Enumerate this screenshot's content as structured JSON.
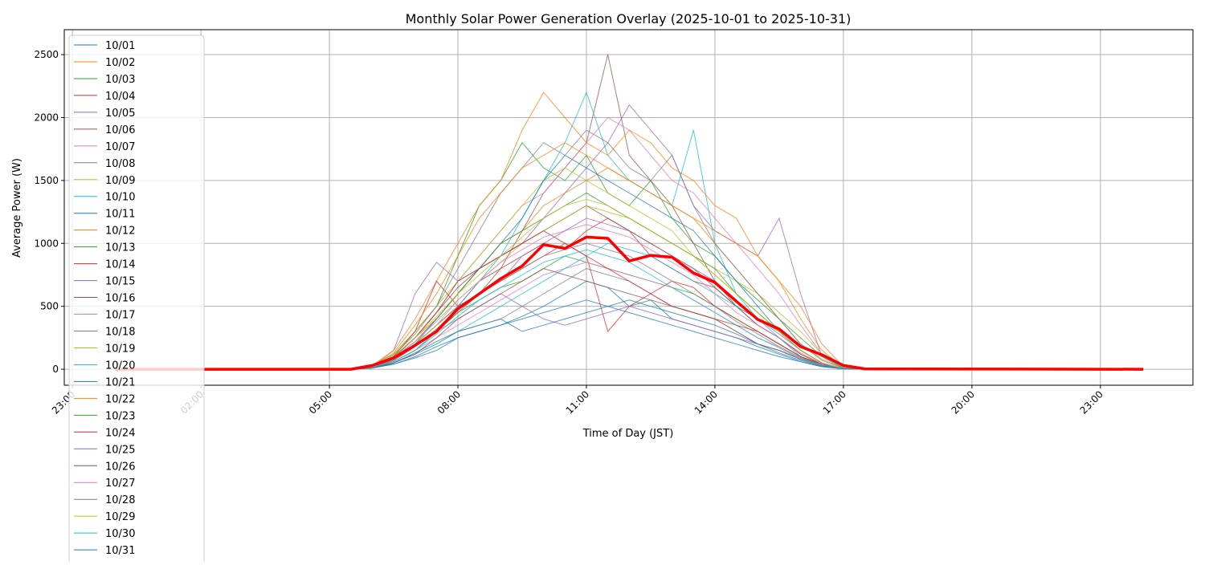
{
  "chart_data": {
    "type": "line",
    "title": "Monthly Solar Power Generation Overlay (2025-10-01 to 2025-10-31)",
    "xlabel": "Time of Day (JST)",
    "ylabel": "Average Power (W)",
    "xlim_hours": [
      -1.19,
      25.16
    ],
    "ylim": [
      -127,
      2698
    ],
    "grid": true,
    "legend_position": "upper-left",
    "x_ticks": [
      {
        "hour": -1,
        "label": "23:00"
      },
      {
        "hour": 2,
        "label": "02:00"
      },
      {
        "hour": 5,
        "label": "05:00"
      },
      {
        "hour": 8,
        "label": "08:00"
      },
      {
        "hour": 11,
        "label": "11:00"
      },
      {
        "hour": 14,
        "label": "14:00"
      },
      {
        "hour": 17,
        "label": "17:00"
      },
      {
        "hour": 20,
        "label": "20:00"
      },
      {
        "hour": 23,
        "label": "23:00"
      }
    ],
    "y_ticks": [
      {
        "value": 0,
        "label": "0"
      },
      {
        "value": 500,
        "label": "500"
      },
      {
        "value": 1000,
        "label": "1000"
      },
      {
        "value": 1500,
        "label": "1500"
      },
      {
        "value": 2000,
        "label": "2000"
      },
      {
        "value": 2500,
        "label": "2500"
      }
    ],
    "sample_start_hour": 5.5,
    "sample_step_hours": 0.5,
    "day_range_hours": [
      0,
      24
    ],
    "colors": [
      "#1f77b4",
      "#ff7f0e",
      "#2ca02c",
      "#d62728",
      "#9467bd",
      "#8c564b",
      "#e377c2",
      "#7f7f7f",
      "#bcbd22",
      "#17becf"
    ],
    "mean_color": "#ff0000",
    "series": [
      {
        "name": "10/01",
        "values": [
          0,
          10,
          40,
          90,
          150,
          250,
          300,
          350,
          420,
          500,
          600,
          700,
          650,
          500,
          550,
          400,
          350,
          300,
          250,
          180,
          120,
          60,
          20,
          5,
          0
        ]
      },
      {
        "name": "10/02",
        "values": [
          0,
          20,
          100,
          250,
          400,
          600,
          800,
          1000,
          1100,
          1300,
          1400,
          1500,
          1600,
          1500,
          1400,
          1300,
          1200,
          1000,
          800,
          600,
          400,
          200,
          80,
          10,
          0
        ]
      },
      {
        "name": "10/03",
        "values": [
          0,
          30,
          120,
          300,
          500,
          900,
          1300,
          1500,
          1800,
          1600,
          1500,
          1700,
          1400,
          1300,
          1500,
          1200,
          1000,
          900,
          700,
          550,
          400,
          250,
          100,
          10,
          0
        ]
      },
      {
        "name": "10/04",
        "values": [
          0,
          15,
          80,
          200,
          350,
          500,
          700,
          800,
          900,
          1000,
          950,
          1100,
          1200,
          1100,
          900,
          800,
          700,
          650,
          500,
          400,
          300,
          150,
          50,
          5,
          0
        ]
      },
      {
        "name": "10/05",
        "values": [
          0,
          20,
          150,
          600,
          850,
          700,
          800,
          900,
          1000,
          1200,
          1400,
          1600,
          1800,
          2100,
          1900,
          1700,
          1300,
          1100,
          1000,
          900,
          1200,
          600,
          100,
          10,
          0
        ]
      },
      {
        "name": "10/06",
        "values": [
          0,
          10,
          60,
          150,
          300,
          450,
          600,
          800,
          1100,
          1400,
          1600,
          1800,
          2500,
          1700,
          1500,
          1300,
          1000,
          700,
          500,
          350,
          250,
          120,
          40,
          5,
          0
        ]
      },
      {
        "name": "10/07",
        "values": [
          0,
          25,
          100,
          250,
          450,
          700,
          900,
          1100,
          1300,
          1400,
          1600,
          1800,
          2000,
          1900,
          1700,
          1500,
          1400,
          1200,
          1000,
          800,
          600,
          350,
          120,
          10,
          0
        ]
      },
      {
        "name": "10/08",
        "values": [
          0,
          10,
          50,
          120,
          200,
          300,
          350,
          400,
          500,
          600,
          700,
          800,
          750,
          700,
          600,
          500,
          450,
          400,
          300,
          200,
          150,
          80,
          30,
          5,
          0
        ]
      },
      {
        "name": "10/09",
        "values": [
          0,
          20,
          120,
          300,
          500,
          700,
          900,
          1100,
          1300,
          1500,
          1600,
          1500,
          1400,
          1300,
          1200,
          1100,
          900,
          800,
          700,
          600,
          450,
          300,
          120,
          10,
          0
        ]
      },
      {
        "name": "10/10",
        "values": [
          0,
          10,
          60,
          150,
          300,
          500,
          700,
          900,
          1200,
          1500,
          1800,
          2200,
          1700,
          1500,
          1400,
          1300,
          1900,
          1000,
          600,
          400,
          250,
          100,
          30,
          5,
          0
        ]
      },
      {
        "name": "10/11",
        "values": [
          0,
          15,
          90,
          220,
          400,
          600,
          800,
          1000,
          1200,
          1500,
          1700,
          1600,
          1500,
          1400,
          1300,
          1200,
          1100,
          900,
          700,
          500,
          300,
          150,
          50,
          5,
          0
        ]
      },
      {
        "name": "10/12",
        "values": [
          0,
          30,
          150,
          400,
          700,
          1000,
          1300,
          1500,
          1900,
          2200,
          2000,
          1800,
          1700,
          1900,
          1800,
          1600,
          1500,
          1300,
          1200,
          900,
          700,
          400,
          150,
          15,
          0
        ]
      },
      {
        "name": "10/13",
        "values": [
          0,
          12,
          70,
          180,
          300,
          450,
          550,
          650,
          700,
          800,
          900,
          850,
          800,
          750,
          700,
          650,
          600,
          500,
          400,
          300,
          200,
          100,
          30,
          5,
          0
        ]
      },
      {
        "name": "10/14",
        "values": [
          0,
          20,
          100,
          300,
          700,
          500,
          600,
          700,
          800,
          900,
          1000,
          900,
          300,
          500,
          600,
          700,
          650,
          500,
          400,
          300,
          200,
          100,
          40,
          5,
          0
        ]
      },
      {
        "name": "10/15",
        "values": [
          0,
          15,
          80,
          200,
          350,
          500,
          600,
          700,
          900,
          1000,
          1100,
          1200,
          1150,
          1100,
          1000,
          900,
          800,
          700,
          550,
          400,
          280,
          150,
          50,
          5,
          0
        ]
      },
      {
        "name": "10/16",
        "values": [
          0,
          15,
          90,
          250,
          450,
          700,
          800,
          900,
          1000,
          1100,
          1200,
          1300,
          1200,
          1100,
          1000,
          900,
          800,
          650,
          500,
          350,
          250,
          120,
          40,
          5,
          0
        ]
      },
      {
        "name": "10/17",
        "values": [
          0,
          10,
          60,
          150,
          250,
          350,
          450,
          550,
          650,
          750,
          800,
          850,
          800,
          750,
          700,
          650,
          550,
          450,
          350,
          250,
          180,
          90,
          30,
          5,
          0
        ]
      },
      {
        "name": "10/18",
        "values": [
          0,
          20,
          110,
          280,
          500,
          800,
          1100,
          1400,
          1600,
          1800,
          1700,
          1900,
          1800,
          1600,
          1500,
          1700,
          1300,
          1000,
          800,
          600,
          400,
          200,
          70,
          8,
          0
        ]
      },
      {
        "name": "10/19",
        "values": [
          0,
          15,
          80,
          200,
          350,
          550,
          700,
          850,
          1000,
          1100,
          1200,
          1300,
          1250,
          1200,
          1100,
          1000,
          900,
          750,
          600,
          450,
          300,
          150,
          50,
          5,
          0
        ]
      },
      {
        "name": "10/20",
        "values": [
          0,
          10,
          50,
          120,
          200,
          300,
          400,
          500,
          600,
          700,
          800,
          900,
          1000,
          950,
          900,
          800,
          700,
          600,
          500,
          400,
          300,
          200,
          100,
          10,
          0
        ]
      },
      {
        "name": "10/21",
        "values": [
          0,
          10,
          40,
          100,
          180,
          250,
          300,
          350,
          400,
          450,
          500,
          550,
          500,
          450,
          400,
          350,
          300,
          250,
          200,
          150,
          100,
          60,
          20,
          3,
          0
        ]
      },
      {
        "name": "10/22",
        "values": [
          0,
          25,
          130,
          350,
          600,
          900,
          1200,
          1400,
          1600,
          1700,
          1800,
          1700,
          1600,
          1500,
          1400,
          1300,
          1200,
          1100,
          1000,
          900,
          700,
          500,
          200,
          20,
          0
        ]
      },
      {
        "name": "10/23",
        "values": [
          0,
          15,
          80,
          200,
          400,
          600,
          800,
          1000,
          1100,
          1200,
          1300,
          1400,
          1300,
          1200,
          1100,
          1000,
          900,
          800,
          600,
          450,
          300,
          150,
          50,
          5,
          0
        ]
      },
      {
        "name": "10/24",
        "values": [
          0,
          20,
          100,
          250,
          450,
          650,
          800,
          900,
          1000,
          1100,
          1000,
          900,
          800,
          700,
          600,
          500,
          450,
          400,
          350,
          300,
          200,
          100,
          40,
          5,
          0
        ]
      },
      {
        "name": "10/25",
        "values": [
          0,
          15,
          70,
          180,
          300,
          400,
          500,
          600,
          500,
          400,
          350,
          400,
          450,
          500,
          450,
          400,
          350,
          300,
          250,
          200,
          150,
          80,
          30,
          5,
          0
        ]
      },
      {
        "name": "10/26",
        "values": [
          0,
          10,
          50,
          120,
          250,
          400,
          500,
          600,
          700,
          800,
          750,
          700,
          650,
          600,
          550,
          500,
          450,
          400,
          300,
          200,
          150,
          80,
          30,
          5,
          0
        ]
      },
      {
        "name": "10/27",
        "values": [
          0,
          15,
          90,
          220,
          380,
          550,
          700,
          850,
          950,
          1050,
          1100,
          1150,
          1100,
          1050,
          950,
          850,
          750,
          600,
          450,
          350,
          250,
          130,
          45,
          5,
          0
        ]
      },
      {
        "name": "10/28",
        "values": [
          0,
          12,
          70,
          180,
          320,
          480,
          600,
          700,
          800,
          900,
          950,
          1000,
          950,
          900,
          800,
          700,
          600,
          500,
          380,
          280,
          180,
          90,
          30,
          5,
          0
        ]
      },
      {
        "name": "10/29",
        "values": [
          0,
          18,
          100,
          250,
          420,
          600,
          750,
          900,
          1050,
          1200,
          1300,
          1350,
          1300,
          1200,
          1100,
          1000,
          900,
          750,
          600,
          450,
          300,
          150,
          50,
          5,
          0
        ]
      },
      {
        "name": "10/30",
        "values": [
          0,
          12,
          60,
          150,
          280,
          420,
          550,
          650,
          750,
          850,
          900,
          950,
          900,
          850,
          750,
          650,
          550,
          450,
          350,
          250,
          170,
          80,
          30,
          5,
          0
        ]
      },
      {
        "name": "10/31",
        "values": [
          0,
          10,
          50,
          130,
          220,
          300,
          350,
          400,
          300,
          350,
          400,
          450,
          500,
          550,
          500,
          450,
          400,
          350,
          280,
          200,
          130,
          70,
          25,
          3,
          0
        ]
      }
    ],
    "mean_values": [
      0,
      30,
      90,
      190,
      300,
      480,
      600,
      720,
      820,
      990,
      960,
      1050,
      1040,
      860,
      905,
      890,
      765,
      690,
      540,
      395,
      320,
      180,
      115,
      30,
      3
    ]
  }
}
